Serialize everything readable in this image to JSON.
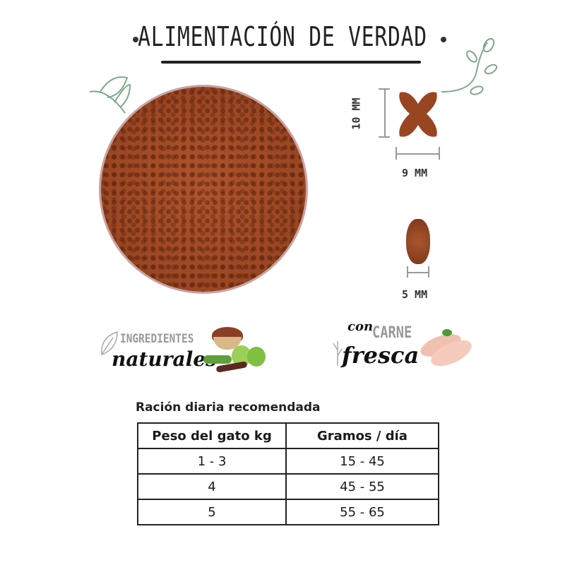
{
  "header": {
    "title": "ALIMENTACIÓN DE VERDAD"
  },
  "kibble": {
    "height_label": "10 MM",
    "width_label": "9 MM",
    "thickness_label": "5 MM"
  },
  "badges": [
    {
      "small": "INGREDIENTES",
      "script": "naturales",
      "icon": "natural-ingredients-image"
    },
    {
      "small_prefix": "con",
      "small": "CARNE",
      "script": "fresca",
      "icon": "chicken-breast-image"
    }
  ],
  "ration": {
    "title": "Ración diaria recomendada",
    "columns": [
      "Peso del  gato kg",
      "Gramos / día"
    ],
    "rows": [
      [
        "1 - 3",
        "15 - 45"
      ],
      [
        "4",
        "45 - 55"
      ],
      [
        "5",
        "55 - 65"
      ]
    ]
  },
  "colors": {
    "kibble": "#9a4522",
    "leaf": "#7fa88a",
    "text": "#222222"
  }
}
